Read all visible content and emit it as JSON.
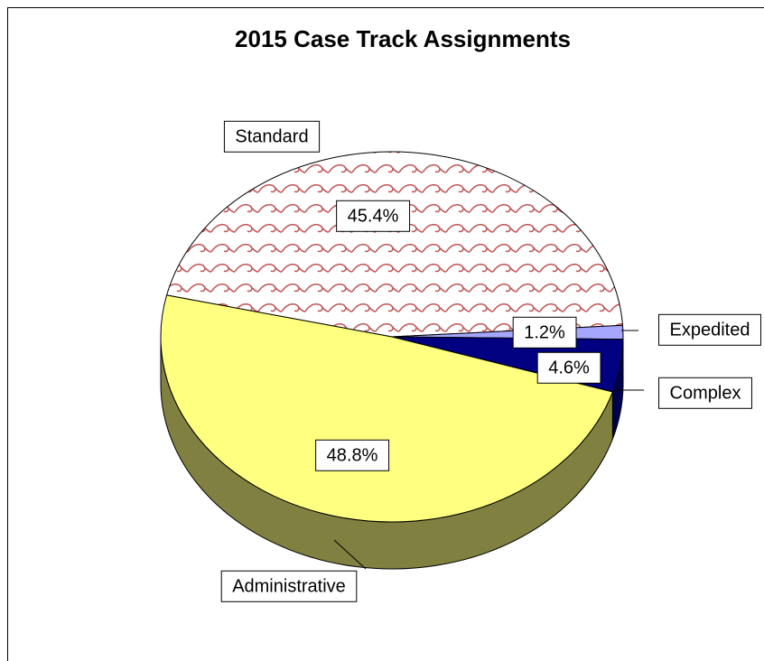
{
  "chart_data": {
    "type": "pie",
    "title": "2015 Case Track Assignments",
    "categories": [
      "Standard",
      "Expedited",
      "Complex",
      "Administrative"
    ],
    "values": [
      45.4,
      1.2,
      4.6,
      48.8
    ],
    "value_labels": [
      "45.4%",
      "1.2%",
      "4.6%",
      "48.8%"
    ],
    "colors": [
      "pattern",
      "#a6a6ff",
      "#000080",
      "#ffff80"
    ]
  }
}
